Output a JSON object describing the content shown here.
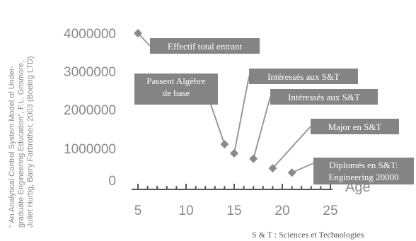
{
  "chart_data": {
    "type": "scatter",
    "x": [
      5,
      14,
      15,
      17,
      19,
      21
    ],
    "y": [
      4000000,
      950000,
      700000,
      550000,
      290000,
      170000
    ],
    "xlim": [
      4.5,
      25
    ],
    "ylim": [
      0,
      4000000
    ],
    "xticks": [
      "5",
      "10",
      "15",
      "20",
      "25"
    ],
    "yticks": [
      "4000000",
      "3000000",
      "2000000",
      "1000000",
      "0"
    ],
    "xlabel": "Age",
    "ylabel": "",
    "grid": false,
    "colors": {
      "points": "#8a8a8a",
      "labels_bg": "#848484",
      "axis": "#555555"
    },
    "annotations": [
      {
        "lines": [
          "Effectif total entrant"
        ]
      },
      {
        "lines": [
          "Passent Algèbre",
          "de base"
        ]
      },
      {
        "lines": [
          "Intéressés aux S&T"
        ]
      },
      {
        "lines": [
          "Intéressés aux S&T"
        ]
      },
      {
        "lines": [
          "Major en S&T"
        ]
      },
      {
        "lines": [
          "Diplomés en S&T:",
          "Engineering 20000"
        ]
      }
    ]
  },
  "source_note": [
    "“ An Analytical Control System Model of Under-",
    "graduate Engineering Education”, F.L. Grismore,",
    "Juliet Hurtig, Barry Farbrother, 2003 (Boeing LTD)"
  ],
  "footnote": "S & T : Sciences et Technologies"
}
